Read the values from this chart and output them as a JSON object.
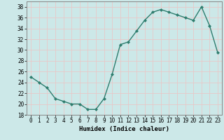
{
  "x": [
    0,
    1,
    2,
    3,
    4,
    5,
    6,
    7,
    8,
    9,
    10,
    11,
    12,
    13,
    14,
    15,
    16,
    17,
    18,
    19,
    20,
    21,
    22,
    23
  ],
  "y": [
    25,
    24,
    23,
    21,
    20.5,
    20,
    20,
    19,
    19,
    21,
    25.5,
    31,
    31.5,
    33.5,
    35.5,
    37,
    37.5,
    37,
    36.5,
    36,
    35.5,
    38,
    34.5,
    29.5
  ],
  "line_color": "#2e7d6e",
  "marker": "D",
  "markersize": 2.0,
  "linewidth": 1.0,
  "xlabel": "Humidex (Indice chaleur)",
  "xlim": [
    -0.5,
    23.5
  ],
  "ylim": [
    18,
    39
  ],
  "yticks": [
    18,
    20,
    22,
    24,
    26,
    28,
    30,
    32,
    34,
    36,
    38
  ],
  "xticks": [
    0,
    1,
    2,
    3,
    4,
    5,
    6,
    7,
    8,
    9,
    10,
    11,
    12,
    13,
    14,
    15,
    16,
    17,
    18,
    19,
    20,
    21,
    22,
    23
  ],
  "bg_color": "#cce8e8",
  "grid_color": "#e8c8c8",
  "tick_fontsize": 5.5,
  "xlabel_fontsize": 6.5
}
